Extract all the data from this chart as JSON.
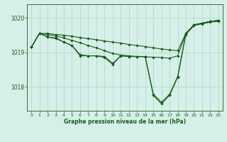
{
  "title": "Graphe pression niveau de la mer (hPa)",
  "bg_color": "#d6efe8",
  "grid_color": "#b8ddd4",
  "line_color": "#1a5c1a",
  "ylim": [
    1017.3,
    1020.4
  ],
  "yticks": [
    1018,
    1019,
    1020
  ],
  "xlim": [
    -0.5,
    23.5
  ],
  "xticks": [
    0,
    1,
    2,
    3,
    4,
    5,
    6,
    7,
    8,
    9,
    10,
    11,
    12,
    13,
    14,
    15,
    16,
    17,
    18,
    19,
    20,
    21,
    22,
    23
  ],
  "series": [
    {
      "y": [
        1019.15,
        1019.55,
        1019.55,
        1019.52,
        1019.5,
        1019.47,
        1019.43,
        1019.4,
        1019.37,
        1019.33,
        1019.3,
        1019.27,
        1019.23,
        1019.2,
        1019.17,
        1019.13,
        1019.1,
        1019.07,
        1019.05,
        1019.55,
        1019.8,
        1019.85,
        1019.9,
        1019.93
      ]
    },
    {
      "y": [
        1019.15,
        1019.55,
        1019.52,
        1019.48,
        1019.42,
        1019.35,
        1019.28,
        1019.2,
        1019.13,
        1019.05,
        1018.97,
        1018.92,
        1018.9,
        1018.88,
        1018.87,
        1018.86,
        1018.85,
        1018.83,
        1018.9,
        1019.55,
        1019.8,
        1019.85,
        1019.9,
        1019.93
      ]
    },
    {
      "y": [
        1019.15,
        1019.55,
        1019.45,
        1019.42,
        1019.3,
        1019.2,
        1018.93,
        1018.9,
        1018.9,
        1018.88,
        1018.68,
        1018.9,
        1018.88,
        1018.88,
        1018.88,
        1017.78,
        1017.55,
        1017.78,
        1018.3,
        1019.55,
        1019.8,
        1019.85,
        1019.9,
        1019.93
      ]
    },
    {
      "y": [
        1019.15,
        1019.55,
        1019.45,
        1019.4,
        1019.3,
        1019.2,
        1018.9,
        1018.9,
        1018.9,
        1018.85,
        1018.65,
        1018.9,
        1018.88,
        1018.88,
        1018.88,
        1017.75,
        1017.5,
        1017.75,
        1018.28,
        1019.52,
        1019.78,
        1019.83,
        1019.88,
        1019.9
      ]
    }
  ]
}
